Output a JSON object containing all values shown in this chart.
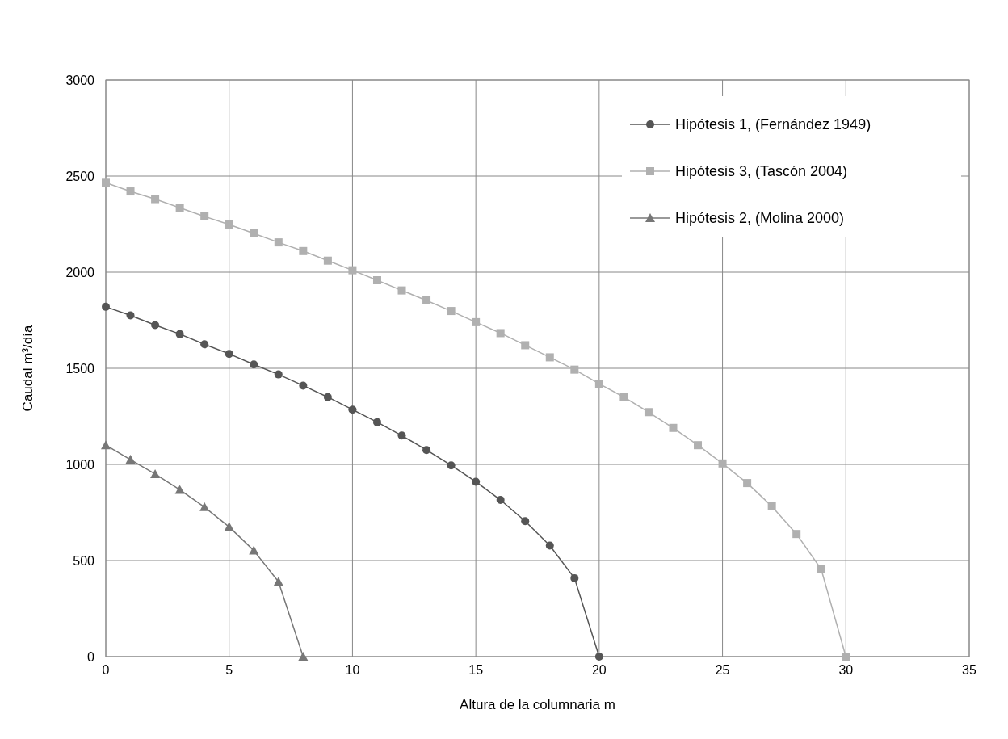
{
  "chart_data": {
    "type": "line",
    "xlabel": "Altura de la columnaria m",
    "ylabel": "Caudal m³/día",
    "xlim": [
      0,
      35
    ],
    "xticks": [
      0,
      5,
      10,
      15,
      20,
      25,
      30,
      35
    ],
    "ylim": [
      0,
      3000
    ],
    "yticks": [
      0,
      500,
      1000,
      1500,
      2000,
      2500,
      3000
    ],
    "grid": true,
    "legend": "top right",
    "line_style": "solid",
    "series": [
      {
        "name": "Hipótesis 1, (Fernández 1949)",
        "color": "#555555",
        "marker": "circle",
        "x": [
          0,
          1,
          2,
          3,
          4,
          5,
          6,
          7,
          8,
          9,
          10,
          11,
          12,
          13,
          14,
          15,
          16,
          17,
          18,
          19,
          20
        ],
        "values": [
          1820,
          1775,
          1725,
          1678,
          1625,
          1575,
          1520,
          1468,
          1410,
          1350,
          1285,
          1220,
          1150,
          1075,
          995,
          910,
          815,
          705,
          578,
          408,
          0
        ]
      },
      {
        "name": "Hipótesis 3, (Tascón 2004)",
        "color": "#b0b0b0",
        "marker": "square",
        "x": [
          0,
          1,
          2,
          3,
          4,
          5,
          6,
          7,
          8,
          9,
          10,
          11,
          12,
          13,
          14,
          15,
          16,
          17,
          18,
          19,
          20,
          21,
          22,
          23,
          24,
          25,
          26,
          27,
          28,
          29,
          30
        ],
        "values": [
          2465,
          2420,
          2380,
          2335,
          2290,
          2248,
          2202,
          2155,
          2110,
          2060,
          2010,
          1958,
          1905,
          1853,
          1798,
          1740,
          1683,
          1620,
          1557,
          1493,
          1420,
          1350,
          1272,
          1190,
          1100,
          1005,
          903,
          782,
          638,
          455,
          0
        ]
      },
      {
        "name": "Hipótesis 2, (Molina 2000)",
        "color": "#777777",
        "marker": "triangle",
        "x": [
          0,
          1,
          2,
          3,
          4,
          5,
          6,
          7,
          8
        ],
        "values": [
          1100,
          1025,
          950,
          868,
          778,
          675,
          552,
          390,
          0
        ]
      }
    ]
  }
}
